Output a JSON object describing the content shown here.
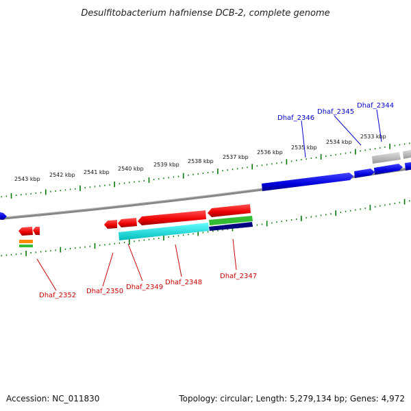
{
  "title": "Desulfitobacterium hafniense DCB-2, complete genome",
  "footer": {
    "accession": "Accession: NC_011830",
    "topology": "Topology: circular; Length: 5,279,134 bp; Genes: 4,972"
  },
  "ticks": [
    "2543 kbp",
    "2542 kbp",
    "2541 kbp",
    "2540 kbp",
    "2539 kbp",
    "2538 kbp",
    "2537 kbp",
    "2536 kbp",
    "2535 kbp",
    "2534 kbp",
    "2533 kbp"
  ],
  "forward_genes": [
    "Dhaf_2346",
    "Dhaf_2345",
    "Dhaf_2344"
  ],
  "reverse_genes": [
    "Dhaf_2352",
    "Dhaf_2350",
    "Dhaf_2349",
    "Dhaf_2348",
    "Dhaf_2347"
  ],
  "colors": {
    "forward": "#0000ee",
    "reverse": "#ee0000",
    "forward_label": "#0000cc",
    "reverse_label": "#cc0000",
    "backbone": "#888888",
    "tick": "#007700",
    "cyan": "#00dddd",
    "green": "#33bb33",
    "navy": "#000080",
    "orange": "#ff8800",
    "gray": "#aaaaaa"
  }
}
